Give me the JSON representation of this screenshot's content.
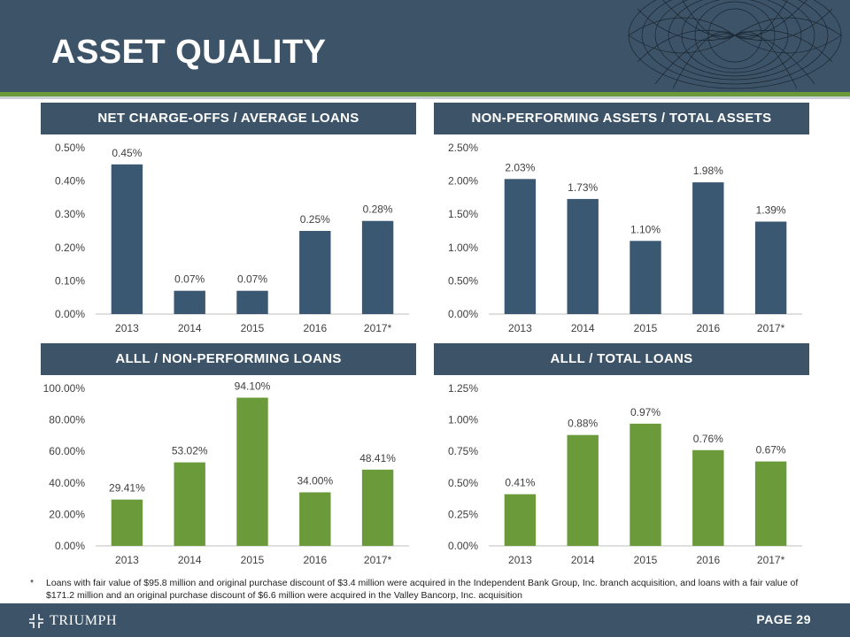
{
  "header": {
    "title": "ASSET QUALITY"
  },
  "colors": {
    "navy": "#3d5468",
    "green": "#6a9a3a",
    "bar_blue": "#3b5873",
    "bar_green": "#6a9a3a"
  },
  "charts": [
    {
      "title": "NET CHARGE-OFFS / AVERAGE LOANS",
      "bar_color": "#3b5873"
    },
    {
      "title": "NON-PERFORMING ASSETS / TOTAL ASSETS",
      "bar_color": "#3b5873"
    },
    {
      "title": "ALLL / NON-PERFORMING LOANS",
      "bar_color": "#6a9a3a"
    },
    {
      "title": "ALLL / TOTAL LOANS",
      "bar_color": "#6a9a3a"
    }
  ],
  "chart_data": [
    {
      "type": "bar",
      "title": "NET CHARGE-OFFS / AVERAGE LOANS",
      "categories": [
        "2013",
        "2014",
        "2015",
        "2016",
        "2017*"
      ],
      "values": [
        0.45,
        0.07,
        0.07,
        0.25,
        0.28
      ],
      "value_labels": [
        "0.45%",
        "0.07%",
        "0.07%",
        "0.25%",
        "0.28%"
      ],
      "ylim": [
        0,
        0.5
      ],
      "yticks": [
        0,
        0.1,
        0.2,
        0.3,
        0.4,
        0.5
      ],
      "ytick_labels": [
        "0.00%",
        "0.10%",
        "0.20%",
        "0.30%",
        "0.40%",
        "0.50%"
      ]
    },
    {
      "type": "bar",
      "title": "NON-PERFORMING ASSETS / TOTAL ASSETS",
      "categories": [
        "2013",
        "2014",
        "2015",
        "2016",
        "2017*"
      ],
      "values": [
        2.03,
        1.73,
        1.1,
        1.98,
        1.39
      ],
      "value_labels": [
        "2.03%",
        "1.73%",
        "1.10%",
        "1.98%",
        "1.39%"
      ],
      "ylim": [
        0,
        2.5
      ],
      "yticks": [
        0,
        0.5,
        1.0,
        1.5,
        2.0,
        2.5
      ],
      "ytick_labels": [
        "0.00%",
        "0.50%",
        "1.00%",
        "1.50%",
        "2.00%",
        "2.50%"
      ]
    },
    {
      "type": "bar",
      "title": "ALLL / NON-PERFORMING LOANS",
      "categories": [
        "2013",
        "2014",
        "2015",
        "2016",
        "2017*"
      ],
      "values": [
        29.41,
        53.02,
        94.1,
        34.0,
        48.41
      ],
      "value_labels": [
        "29.41%",
        "53.02%",
        "94.10%",
        "34.00%",
        "48.41%"
      ],
      "ylim": [
        0,
        100
      ],
      "yticks": [
        0,
        20,
        40,
        60,
        80,
        100
      ],
      "ytick_labels": [
        "0.00%",
        "20.00%",
        "40.00%",
        "60.00%",
        "80.00%",
        "100.00%"
      ]
    },
    {
      "type": "bar",
      "title": "ALLL / TOTAL LOANS",
      "categories": [
        "2013",
        "2014",
        "2015",
        "2016",
        "2017*"
      ],
      "values": [
        0.41,
        0.88,
        0.97,
        0.76,
        0.67
      ],
      "value_labels": [
        "0.41%",
        "0.88%",
        "0.97%",
        "0.76%",
        "0.67%"
      ],
      "ylim": [
        0,
        1.25
      ],
      "yticks": [
        0,
        0.25,
        0.5,
        0.75,
        1.0,
        1.25
      ],
      "ytick_labels": [
        "0.00%",
        "0.25%",
        "0.50%",
        "0.75%",
        "1.00%",
        "1.25%"
      ]
    }
  ],
  "footnote": {
    "marker": "*",
    "text": "Loans with fair value of $95.8 million and original purchase discount of $3.4 million were acquired in the Independent Bank Group, Inc. branch acquisition, and loans with a fair value of $171.2 million and an original purchase discount of $6.6 million were acquired in the Valley Bancorp, Inc. acquisition"
  },
  "footer": {
    "logo_text": "TRIUMPH",
    "page_label": "PAGE 29"
  }
}
